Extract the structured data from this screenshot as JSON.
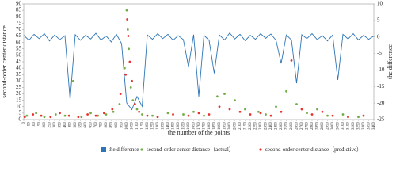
{
  "chart_data": {
    "type": "combo",
    "xlabel": "the number of the points",
    "ylabel": "second-order center distance",
    "y2label": "the difference",
    "xlim": [
      0,
      3400
    ],
    "xticks": [
      0,
      50,
      100,
      150,
      200,
      250,
      300,
      350,
      400,
      450,
      500,
      550,
      600,
      650,
      700,
      750,
      800,
      850,
      900,
      950,
      1000,
      1050,
      1100,
      1150,
      1200,
      1250,
      1300,
      1350,
      1400,
      1450,
      1500,
      1550,
      1600,
      1650,
      1700,
      1750,
      1800,
      1850,
      1900,
      1950,
      2000,
      2050,
      2100,
      2150,
      2200,
      2250,
      2300,
      2350,
      2400,
      2450,
      2500,
      2550,
      2600,
      2650,
      2700,
      2750,
      2800,
      2850,
      2900,
      2950,
      3000,
      3050,
      3100,
      3150,
      3200,
      3250,
      3300,
      3350,
      3400
    ],
    "ylim": [
      0,
      90
    ],
    "yticks": [
      0,
      5,
      10,
      15,
      20,
      25,
      30,
      35,
      40,
      45,
      50,
      55,
      60,
      65,
      70,
      75,
      80,
      85,
      90
    ],
    "y2lim": [
      -25,
      10
    ],
    "y2ticks": [
      -25,
      -20,
      -15,
      -10,
      -5,
      0,
      5,
      10
    ],
    "series": [
      {
        "name": "the difference",
        "type": "line",
        "axis": "y2",
        "color": "#2e75b6",
        "x": [
          0,
          50,
          100,
          150,
          200,
          250,
          300,
          350,
          400,
          450,
          500,
          550,
          600,
          650,
          700,
          750,
          800,
          850,
          900,
          950,
          1000,
          1050,
          1100,
          1150,
          1200,
          1250,
          1300,
          1350,
          1400,
          1450,
          1500,
          1550,
          1600,
          1650,
          1700,
          1750,
          1800,
          1850,
          1900,
          1950,
          2000,
          2050,
          2100,
          2150,
          2200,
          2250,
          2300,
          2350,
          2400,
          2450,
          2500,
          2550,
          2600,
          2650,
          2700,
          2750,
          2800,
          2850,
          2900,
          2950,
          3000,
          3050,
          3100,
          3150,
          3200,
          3250,
          3300,
          3350,
          3400
        ],
        "values": [
          0.5,
          -1,
          0.8,
          -0.5,
          1,
          -1.2,
          0.6,
          -0.8,
          0.4,
          -19,
          0.7,
          -1,
          0.5,
          -0.6,
          1.1,
          -0.9,
          0.3,
          -1.5,
          0.8,
          -2,
          -20,
          -22,
          -18,
          -21,
          0.6,
          -0.7,
          1,
          -0.5,
          0.8,
          -1,
          0.4,
          -0.8,
          -9,
          0.7,
          -18,
          0.5,
          -1,
          -11,
          0.6,
          -0.9,
          1.2,
          -0.6,
          0.8,
          -1.1,
          0.5,
          -0.7,
          1,
          -0.4,
          0.9,
          -1,
          -8,
          0.6,
          -0.9,
          -14,
          0.7,
          -0.5,
          1,
          -0.8,
          0.4,
          -1.2,
          0.6,
          -13,
          0.8,
          -0.6,
          1,
          -0.9,
          0.5,
          -0.7,
          0.3
        ]
      },
      {
        "name": "second-order center distance（actual）",
        "type": "scatter",
        "axis": "y",
        "color": "#70ad47",
        "x": [
          30,
          120,
          200,
          310,
          400,
          480,
          560,
          650,
          720,
          800,
          870,
          930,
          980,
          1000,
          1010,
          1020,
          1040,
          1060,
          1100,
          1150,
          1250,
          1400,
          1550,
          1650,
          1750,
          1880,
          1950,
          2050,
          2150,
          2280,
          2350,
          2450,
          2550,
          2650,
          2750,
          2850,
          2950,
          3100,
          3250
        ],
        "values": [
          3,
          5,
          2,
          4,
          3,
          30,
          2,
          5,
          3,
          4,
          6,
          12,
          40,
          85,
          70,
          55,
          25,
          15,
          8,
          4,
          3,
          5,
          4,
          6,
          3,
          18,
          20,
          15,
          8,
          6,
          4,
          10,
          22,
          12,
          5,
          8,
          3,
          4,
          2
        ]
      },
      {
        "name": "second-order center distance（predictive）",
        "type": "scatter",
        "axis": "y",
        "color": "#e8322d",
        "x": [
          10,
          90,
          170,
          260,
          350,
          440,
          530,
          620,
          700,
          780,
          860,
          940,
          990,
          1005,
          1015,
          1030,
          1050,
          1080,
          1120,
          1200,
          1300,
          1450,
          1600,
          1700,
          1800,
          1900,
          2000,
          2100,
          2200,
          2300,
          2400,
          2500,
          2600,
          2700,
          2800,
          2900,
          3000,
          3150,
          3300
        ],
        "values": [
          2,
          4,
          3,
          2,
          5,
          3,
          2,
          4,
          3,
          5,
          8,
          20,
          35,
          78,
          65,
          45,
          30,
          12,
          6,
          3,
          2,
          4,
          3,
          5,
          4,
          10,
          8,
          6,
          4,
          5,
          3,
          6,
          46,
          8,
          4,
          6,
          3,
          2,
          3
        ]
      }
    ]
  }
}
